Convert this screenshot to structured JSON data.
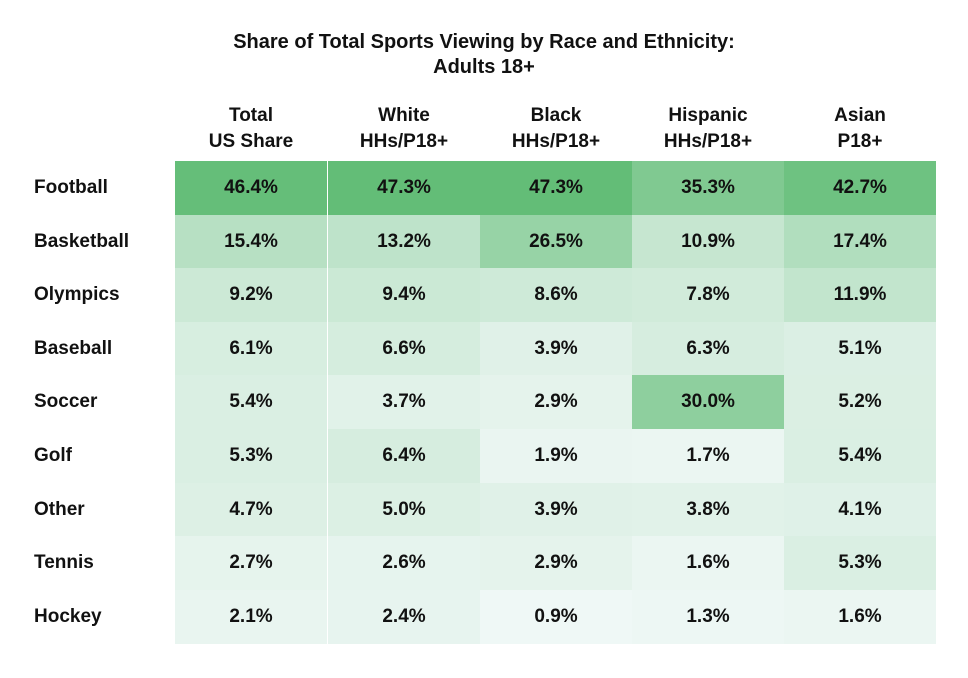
{
  "chart_data": {
    "type": "heatmap",
    "title": "Share of Total Sports Viewing by Race and Ethnicity:",
    "subtitle": "Adults 18+",
    "columns": [
      {
        "line1": "Total",
        "line2": "US Share"
      },
      {
        "line1": "White",
        "line2": "HHs/P18+"
      },
      {
        "line1": "Black",
        "line2": "HHs/P18+"
      },
      {
        "line1": "Hispanic",
        "line2": "HHs/P18+"
      },
      {
        "line1": "Asian",
        "line2": "P18+"
      }
    ],
    "rows": [
      "Football",
      "Basketball",
      "Olympics",
      "Baseball",
      "Soccer",
      "Golf",
      "Other",
      "Tennis",
      "Hockey"
    ],
    "values": [
      [
        46.4,
        47.3,
        47.3,
        35.3,
        42.7
      ],
      [
        15.4,
        13.2,
        26.5,
        10.9,
        17.4
      ],
      [
        9.2,
        9.4,
        8.6,
        7.8,
        11.9
      ],
      [
        6.1,
        6.6,
        3.9,
        6.3,
        5.1
      ],
      [
        5.4,
        3.7,
        2.9,
        30.0,
        5.2
      ],
      [
        5.3,
        6.4,
        1.9,
        1.7,
        5.4
      ],
      [
        4.7,
        5.0,
        3.9,
        3.8,
        4.1
      ],
      [
        2.7,
        2.6,
        2.9,
        1.6,
        5.3
      ],
      [
        2.1,
        2.4,
        0.9,
        1.3,
        1.6
      ]
    ],
    "value_suffix": "%",
    "color_scale": {
      "low": "#f7fbfd",
      "high": "#63bd77"
    }
  }
}
